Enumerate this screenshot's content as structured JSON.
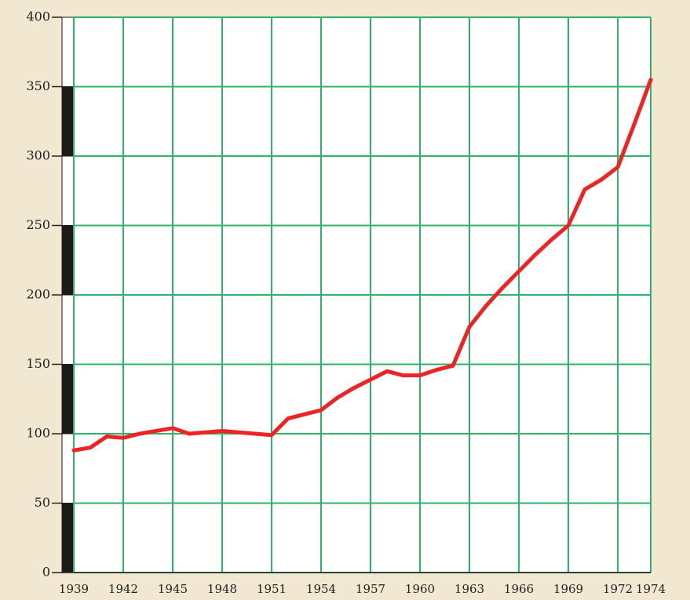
{
  "chart_data": {
    "type": "line",
    "x": [
      1939,
      1940,
      1941,
      1942,
      1943,
      1944,
      1945,
      1946,
      1947,
      1948,
      1949,
      1950,
      1951,
      1952,
      1953,
      1954,
      1955,
      1956,
      1957,
      1958,
      1959,
      1960,
      1961,
      1962,
      1963,
      1964,
      1965,
      1966,
      1967,
      1968,
      1969,
      1970,
      1971,
      1972,
      1973,
      1974
    ],
    "series": [
      {
        "name": null,
        "color": "#ee2424",
        "values": [
          88,
          90,
          98,
          97,
          100,
          102,
          104,
          100,
          101,
          102,
          101,
          100,
          99,
          111,
          114,
          117,
          126,
          133,
          139,
          145,
          142,
          142,
          146,
          149,
          177,
          192,
          205,
          217,
          229,
          240,
          250,
          276,
          283,
          292,
          323,
          355
        ]
      }
    ],
    "xlim": [
      1939,
      1974
    ],
    "xticks": [
      1939,
      1942,
      1945,
      1948,
      1951,
      1954,
      1957,
      1960,
      1963,
      1966,
      1969,
      1972,
      1974
    ],
    "ylim": [
      0,
      400
    ],
    "yticks": [
      0,
      50,
      100,
      150,
      200,
      250,
      300,
      350,
      400
    ],
    "grid": true
  }
}
